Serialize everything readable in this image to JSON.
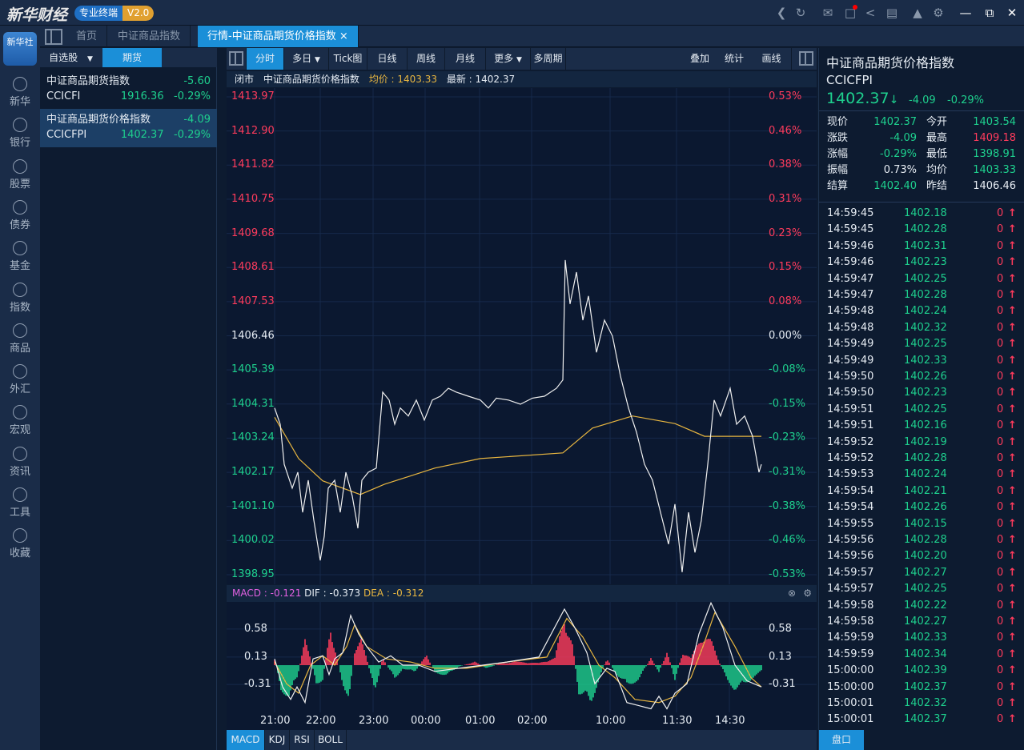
{
  "app": {
    "logo": "新华财经",
    "badge": "专业终端",
    "version": "V2.0",
    "tb_icons": [
      "back-icon",
      "refresh-icon",
      "mail-icon",
      "message-icon",
      "share-icon",
      "notes-icon",
      "skin-icon",
      "settings-icon",
      "minimize-icon",
      "restore-icon",
      "close-icon"
    ]
  },
  "nav": {
    "brand": "新华社",
    "items": [
      "新华",
      "银行",
      "股票",
      "债券",
      "基金",
      "指数",
      "商品",
      "外汇",
      "宏观",
      "资讯",
      "工具",
      "收藏"
    ]
  },
  "tabs": [
    "首页",
    "中证商品指数",
    "行情-中证商品期货价格指数"
  ],
  "watchlist": {
    "tabs": [
      "自选股",
      "期货"
    ],
    "items": [
      {
        "name": "中证商品期货指数",
        "change": "-5.60",
        "code": "CCICFI",
        "price": "1916.36",
        "pct": "-0.29%"
      },
      {
        "name": "中证商品期货价格指数",
        "change": "-4.09",
        "code": "CCICFPI",
        "price": "1402.37",
        "pct": "-0.29%"
      }
    ]
  },
  "toolbar": {
    "left": [
      "分时",
      "多日",
      "Tick图",
      "日线",
      "周线",
      "月线",
      "更多",
      "多周期"
    ],
    "right": [
      "叠加",
      "统计",
      "画线"
    ]
  },
  "info": {
    "status": "闭市",
    "name": "中证商品期货价格指数",
    "avg": "均价 : 1403.33",
    "last": "最新 : 1402.37"
  },
  "chart_data": {
    "type": "line",
    "title": "中证商品期货价格指数 分时",
    "prev_close": 1406.46,
    "y_left": [
      "1413.97",
      "1412.90",
      "1411.82",
      "1410.75",
      "1409.68",
      "1408.61",
      "1407.53",
      "1406.46",
      "1405.39",
      "1404.31",
      "1403.24",
      "1402.17",
      "1401.10",
      "1400.02",
      "1398.95"
    ],
    "y_right": [
      "0.53%",
      "0.46%",
      "0.38%",
      "0.31%",
      "0.23%",
      "0.15%",
      "0.08%",
      "0.00%",
      "-0.08%",
      "-0.15%",
      "-0.23%",
      "-0.31%",
      "-0.38%",
      "-0.46%",
      "-0.53%"
    ],
    "ylim": [
      1398.95,
      1413.97
    ],
    "xlim": [
      0,
      608
    ],
    "price": [
      [
        0,
        1404.19
      ],
      [
        7,
        1403.68
      ],
      [
        12,
        1402.42
      ],
      [
        22,
        1401.67
      ],
      [
        29,
        1402.17
      ],
      [
        35,
        1400.91
      ],
      [
        42,
        1401.92
      ],
      [
        49,
        1400.66
      ],
      [
        57,
        1399.4
      ],
      [
        62,
        1400.16
      ],
      [
        67,
        1401.67
      ],
      [
        75,
        1401.92
      ],
      [
        82,
        1400.91
      ],
      [
        89,
        1402.17
      ],
      [
        97,
        1401.42
      ],
      [
        104,
        1400.41
      ],
      [
        109,
        1401.92
      ],
      [
        117,
        1402.17
      ],
      [
        127,
        1402.3
      ],
      [
        135,
        1404.69
      ],
      [
        143,
        1404.44
      ],
      [
        150,
        1403.68
      ],
      [
        157,
        1404.19
      ],
      [
        167,
        1403.94
      ],
      [
        177,
        1404.44
      ],
      [
        187,
        1403.81
      ],
      [
        197,
        1404.44
      ],
      [
        207,
        1404.56
      ],
      [
        217,
        1404.81
      ],
      [
        227,
        1404.69
      ],
      [
        242,
        1404.56
      ],
      [
        257,
        1404.44
      ],
      [
        267,
        1404.19
      ],
      [
        277,
        1404.5
      ],
      [
        292,
        1404.44
      ],
      [
        307,
        1404.31
      ],
      [
        322,
        1404.5
      ],
      [
        337,
        1404.56
      ],
      [
        352,
        1404.81
      ],
      [
        360,
        1405.07
      ],
      [
        363,
        1408.84
      ],
      [
        369,
        1407.46
      ],
      [
        377,
        1408.46
      ],
      [
        385,
        1406.95
      ],
      [
        392,
        1407.71
      ],
      [
        402,
        1405.94
      ],
      [
        412,
        1406.95
      ],
      [
        422,
        1406.45
      ],
      [
        432,
        1405.19
      ],
      [
        442,
        1404.19
      ],
      [
        452,
        1403.43
      ],
      [
        462,
        1402.42
      ],
      [
        472,
        1401.92
      ],
      [
        482,
        1400.91
      ],
      [
        492,
        1399.91
      ],
      [
        500,
        1401.17
      ],
      [
        509,
        1399.03
      ],
      [
        517,
        1400.91
      ],
      [
        525,
        1399.65
      ],
      [
        533,
        1400.66
      ],
      [
        541,
        1402.42
      ],
      [
        549,
        1404.44
      ],
      [
        557,
        1403.94
      ],
      [
        569,
        1404.81
      ],
      [
        577,
        1403.68
      ],
      [
        587,
        1403.94
      ],
      [
        597,
        1403.3
      ],
      [
        605,
        1402.17
      ],
      [
        608,
        1402.42
      ]
    ],
    "avg": [
      [
        0,
        1403.9
      ],
      [
        30,
        1402.6
      ],
      [
        60,
        1401.9
      ],
      [
        107,
        1401.47
      ],
      [
        137,
        1401.79
      ],
      [
        200,
        1402.3
      ],
      [
        257,
        1402.6
      ],
      [
        360,
        1402.78
      ],
      [
        397,
        1403.56
      ],
      [
        447,
        1403.94
      ],
      [
        500,
        1403.7
      ],
      [
        537,
        1403.3
      ],
      [
        608,
        1403.3
      ]
    ],
    "x_ticks": [
      "21:00",
      "22:00",
      "23:00",
      "00:00",
      "01:00",
      "02:00",
      "10:00",
      "11:30",
      "14:30"
    ],
    "x_tick_idx": [
      0,
      57,
      123,
      188,
      256,
      321,
      419,
      502,
      568
    ]
  },
  "macd": {
    "label_macd": "MACD : -0.121",
    "label_dif": "DIF : -0.373",
    "label_dea": "DEA : -0.312",
    "y_ticks": [
      "0.58",
      "0.13",
      "-0.31"
    ],
    "y_vals": [
      0.58,
      0.13,
      -0.31
    ],
    "hist": [
      [
        0,
        0.1
      ],
      [
        8,
        -0.35
      ],
      [
        18,
        -0.45
      ],
      [
        28,
        -0.2
      ],
      [
        38,
        0.35
      ],
      [
        45,
        0.1
      ],
      [
        52,
        -0.3
      ],
      [
        60,
        -0.2
      ],
      [
        70,
        0.55
      ],
      [
        78,
        0.1
      ],
      [
        85,
        -0.25
      ],
      [
        93,
        -0.5
      ],
      [
        100,
        0.2
      ],
      [
        108,
        0.35
      ],
      [
        115,
        0.1
      ],
      [
        125,
        -0.4
      ],
      [
        135,
        0.1
      ],
      [
        150,
        -0.2
      ],
      [
        160,
        -0.05
      ],
      [
        175,
        -0.1
      ],
      [
        190,
        0.15
      ],
      [
        200,
        -0.1
      ],
      [
        215,
        -0.15
      ],
      [
        230,
        -0.02
      ],
      [
        250,
        0.05
      ],
      [
        265,
        -0.05
      ],
      [
        280,
        0.02
      ],
      [
        300,
        0.05
      ],
      [
        330,
        0.03
      ],
      [
        350,
        0.1
      ],
      [
        362,
        0.7
      ],
      [
        372,
        0.3
      ],
      [
        380,
        -0.4
      ],
      [
        395,
        -0.55
      ],
      [
        405,
        -0.2
      ],
      [
        415,
        0.1
      ],
      [
        425,
        -0.1
      ],
      [
        440,
        -0.3
      ],
      [
        455,
        -0.2
      ],
      [
        470,
        0.1
      ],
      [
        480,
        -0.1
      ],
      [
        490,
        0.2
      ],
      [
        500,
        -0.2
      ],
      [
        510,
        0.2
      ],
      [
        520,
        0.1
      ],
      [
        535,
        0.45
      ],
      [
        545,
        0.35
      ],
      [
        555,
        0.05
      ],
      [
        565,
        -0.2
      ],
      [
        575,
        -0.35
      ],
      [
        585,
        -0.3
      ],
      [
        600,
        -0.15
      ],
      [
        608,
        -0.1
      ]
    ],
    "dif": [
      [
        0,
        0.1
      ],
      [
        10,
        -0.35
      ],
      [
        20,
        -0.55
      ],
      [
        28,
        -0.35
      ],
      [
        38,
        -0.6
      ],
      [
        48,
        0.1
      ],
      [
        60,
        0.15
      ],
      [
        68,
        -0.15
      ],
      [
        75,
        0.1
      ],
      [
        85,
        0.2
      ],
      [
        95,
        0.8
      ],
      [
        105,
        0.5
      ],
      [
        115,
        0.3
      ],
      [
        130,
        0.05
      ],
      [
        145,
        0.15
      ],
      [
        160,
        0
      ],
      [
        180,
        0
      ],
      [
        200,
        -0.1
      ],
      [
        230,
        -0.05
      ],
      [
        260,
        0
      ],
      [
        290,
        0.05
      ],
      [
        330,
        0.13
      ],
      [
        362,
        0.9
      ],
      [
        375,
        0.6
      ],
      [
        390,
        0.2
      ],
      [
        400,
        -0.3
      ],
      [
        415,
        -0.05
      ],
      [
        425,
        -0.1
      ],
      [
        440,
        -0.6
      ],
      [
        455,
        -0.65
      ],
      [
        470,
        -0.7
      ],
      [
        480,
        -0.5
      ],
      [
        490,
        -0.7
      ],
      [
        500,
        -0.45
      ],
      [
        515,
        -0.3
      ],
      [
        530,
        0.5
      ],
      [
        545,
        1.0
      ],
      [
        560,
        0.6
      ],
      [
        575,
        0
      ],
      [
        590,
        -0.25
      ],
      [
        608,
        -0.35
      ]
    ],
    "dea": [
      [
        0,
        0.05
      ],
      [
        15,
        -0.3
      ],
      [
        30,
        -0.45
      ],
      [
        45,
        0
      ],
      [
        60,
        0.15
      ],
      [
        75,
        0
      ],
      [
        90,
        0.3
      ],
      [
        100,
        0.65
      ],
      [
        115,
        0.3
      ],
      [
        140,
        0.1
      ],
      [
        170,
        0.05
      ],
      [
        200,
        -0.05
      ],
      [
        240,
        -0.05
      ],
      [
        290,
        0.05
      ],
      [
        340,
        0.13
      ],
      [
        365,
        0.75
      ],
      [
        385,
        0.45
      ],
      [
        405,
        0
      ],
      [
        425,
        -0.2
      ],
      [
        450,
        -0.55
      ],
      [
        480,
        -0.6
      ],
      [
        500,
        -0.5
      ],
      [
        520,
        -0.2
      ],
      [
        535,
        0.3
      ],
      [
        550,
        0.85
      ],
      [
        575,
        0.3
      ],
      [
        595,
        -0.2
      ],
      [
        608,
        -0.35
      ]
    ]
  },
  "indicator_tabs": [
    "MACD",
    "KDJ",
    "RSI",
    "BOLL"
  ],
  "quote": {
    "name": "中证商品期货价格指数",
    "code": "CCICFPI",
    "price": "1402.37",
    "change": "-4.09",
    "pct": "-0.29%",
    "stats": [
      [
        "现价",
        "1402.37",
        "green",
        "今开",
        "1403.54",
        "green"
      ],
      [
        "涨跌",
        "-4.09",
        "green",
        "最高",
        "1409.18",
        "red"
      ],
      [
        "涨幅",
        "-0.29%",
        "green",
        "最低",
        "1398.91",
        "green"
      ],
      [
        "振幅",
        "0.73%",
        "white",
        "均价",
        "1403.33",
        "green"
      ],
      [
        "结算",
        "1402.40",
        "green",
        "昨结",
        "1406.46",
        "white"
      ]
    ]
  },
  "ticks": [
    [
      "14:59:45",
      "1402.18"
    ],
    [
      "14:59:45",
      "1402.28"
    ],
    [
      "14:59:46",
      "1402.31"
    ],
    [
      "14:59:46",
      "1402.23"
    ],
    [
      "14:59:47",
      "1402.25"
    ],
    [
      "14:59:47",
      "1402.28"
    ],
    [
      "14:59:48",
      "1402.24"
    ],
    [
      "14:59:48",
      "1402.32"
    ],
    [
      "14:59:49",
      "1402.25"
    ],
    [
      "14:59:49",
      "1402.33"
    ],
    [
      "14:59:50",
      "1402.26"
    ],
    [
      "14:59:50",
      "1402.23"
    ],
    [
      "14:59:51",
      "1402.25"
    ],
    [
      "14:59:51",
      "1402.16"
    ],
    [
      "14:59:52",
      "1402.19"
    ],
    [
      "14:59:52",
      "1402.28"
    ],
    [
      "14:59:53",
      "1402.24"
    ],
    [
      "14:59:54",
      "1402.21"
    ],
    [
      "14:59:54",
      "1402.26"
    ],
    [
      "14:59:55",
      "1402.15"
    ],
    [
      "14:59:56",
      "1402.28"
    ],
    [
      "14:59:56",
      "1402.20"
    ],
    [
      "14:59:57",
      "1402.27"
    ],
    [
      "14:59:57",
      "1402.25"
    ],
    [
      "14:59:58",
      "1402.22"
    ],
    [
      "14:59:58",
      "1402.27"
    ],
    [
      "14:59:59",
      "1402.33"
    ],
    [
      "14:59:59",
      "1402.34"
    ],
    [
      "15:00:00",
      "1402.39"
    ],
    [
      "15:00:00",
      "1402.37"
    ],
    [
      "15:00:01",
      "1402.32"
    ],
    [
      "15:00:01",
      "1402.37"
    ]
  ],
  "tick_volume": "0",
  "rp_tab": "盘口",
  "colors": {
    "up": "#ff3b5c",
    "down": "#1ed08e",
    "avg": "#e8b640",
    "accent": "#1b8fd8"
  }
}
